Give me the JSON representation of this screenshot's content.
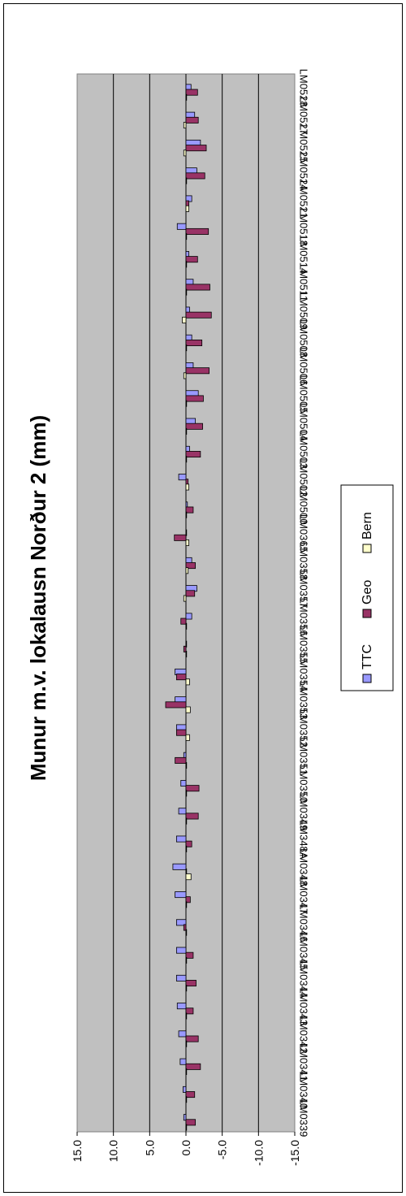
{
  "chart_data": {
    "type": "bar",
    "title": "Munur m.v. lokalausn Norður 2 (mm)",
    "xlabel": "",
    "ylabel": "",
    "ylim": [
      -15,
      15
    ],
    "y_ticks": [
      "15.0",
      "10.0",
      "5.0",
      "0.0",
      "-5.0",
      "-10.0",
      "-15.0"
    ],
    "grid": true,
    "legend_position": "right",
    "orientation": "rotated 90 degrees clockwise",
    "categories": [
      "LM0339",
      "LM0340",
      "LM0341",
      "LM0342",
      "LM0343",
      "LM0344",
      "LM0345",
      "LM0346",
      "LM0347",
      "LM0348",
      "LM348A",
      "LM0349",
      "LM0350",
      "LM0351",
      "LM0352",
      "LM0353",
      "LM0354",
      "LM0355",
      "LM0356",
      "LM0357",
      "LM0358",
      "LM0365",
      "LM0500",
      "LM0502",
      "LM0503",
      "LM0504",
      "LM0505",
      "LM0506",
      "LM0508",
      "LM0509",
      "LM0511",
      "LM0514",
      "LM0518",
      "LM0521",
      "LM0524",
      "LM0525",
      "LM0527",
      "LM0528"
    ],
    "series": [
      {
        "name": "TTC",
        "color": "#9999ff",
        "values": [
          0.3,
          0.4,
          0.8,
          1.0,
          1.2,
          1.3,
          1.3,
          1.3,
          1.5,
          1.8,
          1.3,
          1.0,
          0.7,
          0.3,
          1.3,
          1.5,
          1.5,
          0.0,
          -0.8,
          -1.5,
          -0.8,
          0.0,
          -0.2,
          1.0,
          -0.5,
          -1.3,
          -1.7,
          -1.0,
          -0.8,
          -0.5,
          -1.0,
          -0.4,
          1.2,
          -0.8,
          -1.5,
          -2.0,
          -1.2,
          -0.7
        ]
      },
      {
        "name": "Geo",
        "color": "#993366",
        "values": [
          -1.3,
          -1.2,
          -2.0,
          -1.7,
          -1.0,
          -1.4,
          -1.0,
          0.3,
          -0.6,
          0.0,
          -0.8,
          -1.7,
          -1.8,
          1.5,
          1.3,
          2.8,
          1.3,
          0.3,
          0.7,
          -1.2,
          -1.3,
          1.6,
          -1.0,
          -0.3,
          -2.0,
          -2.3,
          -2.4,
          -3.2,
          -2.2,
          -3.5,
          -3.3,
          -1.6,
          -3.1,
          -0.4,
          -2.6,
          -2.8,
          -1.7,
          -1.6
        ]
      },
      {
        "name": "Bern",
        "color": "#ffffcc",
        "values": [
          0.0,
          0.0,
          0.0,
          0.0,
          0.0,
          0.0,
          0.0,
          0.0,
          0.0,
          -0.7,
          0.0,
          0.0,
          0.0,
          0.0,
          -0.5,
          -0.6,
          -0.5,
          0.0,
          0.0,
          0.3,
          -0.3,
          -0.4,
          0.0,
          -0.4,
          0.0,
          0.0,
          0.0,
          0.3,
          0.0,
          0.5,
          0.0,
          0.0,
          0.0,
          -0.4,
          0.0,
          0.3,
          0.3,
          0.0
        ]
      }
    ]
  }
}
